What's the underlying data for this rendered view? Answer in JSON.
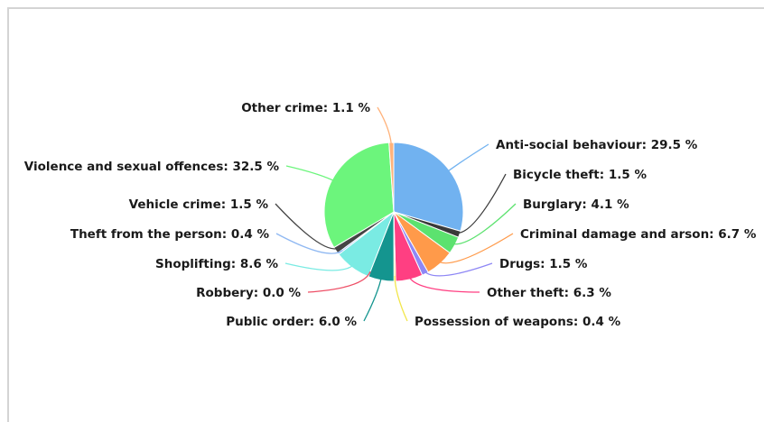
{
  "chart_data": {
    "type": "pie",
    "slices": [
      {
        "label": "Anti-social behaviour",
        "value": 29.5,
        "display": "Anti-social behaviour: 29.5 %",
        "color": "#71b2f0"
      },
      {
        "label": "Bicycle theft",
        "value": 1.5,
        "display": "Bicycle theft: 1.5 %",
        "color": "#3a3a3a"
      },
      {
        "label": "Burglary",
        "value": 4.1,
        "display": "Burglary: 4.1 %",
        "color": "#5ce26f"
      },
      {
        "label": "Criminal damage and arson",
        "value": 6.7,
        "display": "Criminal damage and arson: 6.7 %",
        "color": "#ff9a4a"
      },
      {
        "label": "Drugs",
        "value": 1.5,
        "display": "Drugs: 1.5 %",
        "color": "#8e87f5"
      },
      {
        "label": "Other theft",
        "value": 6.3,
        "display": "Other theft: 6.3 %",
        "color": "#ff3f82"
      },
      {
        "label": "Possession of weapons",
        "value": 0.4,
        "display": "Possession of weapons: 0.4 %",
        "color": "#f2e64a"
      },
      {
        "label": "Public order",
        "value": 6.0,
        "display": "Public order: 6.0 %",
        "color": "#14958f"
      },
      {
        "label": "Robbery",
        "value": 0.0,
        "display": "Robbery: 0.0 %",
        "color": "#ee4f66"
      },
      {
        "label": "Shoplifting",
        "value": 8.6,
        "display": "Shoplifting: 8.6 %",
        "color": "#7aebe3"
      },
      {
        "label": "Theft from the person",
        "value": 0.4,
        "display": "Theft from the person: 0.4 %",
        "color": "#8fb8f2"
      },
      {
        "label": "Vehicle crime",
        "value": 1.5,
        "display": "Vehicle crime: 1.5 %",
        "color": "#444444"
      },
      {
        "label": "Violence and sexual offences",
        "value": 32.5,
        "display": "Violence and sexual offences: 32.5 %",
        "color": "#6cf57c"
      },
      {
        "label": "Other crime",
        "value": 1.1,
        "display": "Other crime: 1.1 %",
        "color": "#ffb27a"
      }
    ]
  }
}
